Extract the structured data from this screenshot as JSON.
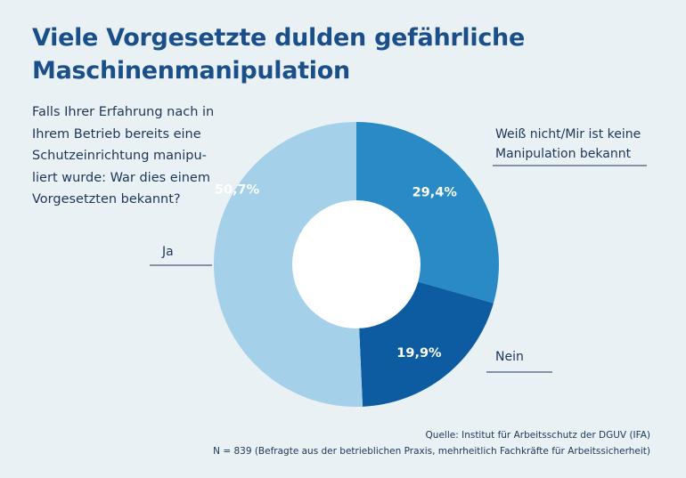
{
  "chart_data": {
    "type": "pie",
    "title": "Viele Vorgesetzte dulden gefährliche Maschinenmanipulation",
    "question": "Falls Ihrer Erfahrung nach in Ihrem Betrieb bereits eine Schutzeinrichtung manipuliert wurde: War dies einem Vorgesetzten bekannt?",
    "question_lines": [
      "Falls Ihrer Erfahrung nach in",
      "Ihrem Betrieb bereits eine",
      "Schutzeinrichtung manipu-",
      "liert wurde: War dies einem",
      "Vorgesetzten bekannt?"
    ],
    "donut": true,
    "slices": [
      {
        "label": "Weiß nicht/Mir ist keine Manipulation bekannt",
        "label_lines": [
          "Weiß nicht/Mir ist keine",
          "Manipulation bekannt"
        ],
        "value": 29.4,
        "value_label": "29,4%",
        "color": "#2a8ac6"
      },
      {
        "label": "Nein",
        "label_lines": [
          "Nein"
        ],
        "value": 19.9,
        "value_label": "19,9%",
        "color": "#0d5ba0"
      },
      {
        "label": "Ja",
        "label_lines": [
          "Ja"
        ],
        "value": 50.7,
        "value_label": "50,7%",
        "color": "#a5d0ea"
      }
    ],
    "source_line": "Quelle: Institut für Arbeitsschutz der DGUV (IFA)",
    "sample_line": "N = 839 (Befragte aus der betrieblichen Praxis, mehrheitlich Fachkräfte für Arbeitssicherheit)",
    "colors": {
      "title": "#1a4f8a",
      "text": "#1c3658",
      "background": "#eaf1f4"
    }
  }
}
